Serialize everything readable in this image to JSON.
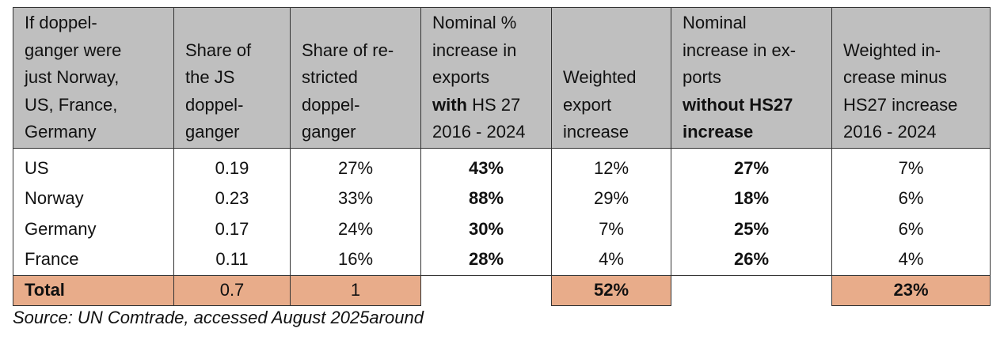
{
  "table": {
    "headers": [
      [
        "If doppel-",
        "ganger were",
        "just Norway,",
        "US, France,",
        "Germany"
      ],
      [
        "Share of",
        "the JS",
        "doppel-",
        "ganger"
      ],
      [
        "Share of re-",
        "stricted",
        "doppel-",
        "ganger"
      ],
      [
        {
          "t": "Nominal %"
        },
        {
          "t": "increase in"
        },
        {
          "t": "exports"
        },
        {
          "t": "with",
          "b": true,
          "rest": " HS 27"
        },
        {
          "t": "2016 - 2024"
        }
      ],
      [
        "Weighted",
        "export",
        "increase"
      ],
      [
        {
          "t": "Nominal"
        },
        {
          "t": "increase in ex-"
        },
        {
          "t": "ports"
        },
        {
          "t": "without HS27",
          "b": true
        },
        {
          "t": "increase",
          "b": true
        }
      ],
      [
        "Weighted in-",
        "crease minus",
        "HS27 increase",
        "2016 - 2024"
      ]
    ],
    "rows": [
      {
        "country": "US",
        "share_js": "0.19",
        "share_restricted": "27%",
        "nominal_with": "43%",
        "weighted_export": "12%",
        "nominal_without": "27%",
        "weighted_minus": "7%"
      },
      {
        "country": "Norway",
        "share_js": "0.23",
        "share_restricted": "33%",
        "nominal_with": "88%",
        "weighted_export": "29%",
        "nominal_without": "18%",
        "weighted_minus": "6%"
      },
      {
        "country": "Germany",
        "share_js": "0.17",
        "share_restricted": "24%",
        "nominal_with": "30%",
        "weighted_export": "7%",
        "nominal_without": "25%",
        "weighted_minus": "6%"
      },
      {
        "country": "France",
        "share_js": "0.11",
        "share_restricted": "16%",
        "nominal_with": "28%",
        "weighted_export": "4%",
        "nominal_without": "26%",
        "weighted_minus": "4%"
      }
    ],
    "total": {
      "label": "Total",
      "share_js": "0.7",
      "share_restricted": "1",
      "weighted_export": "52%",
      "weighted_minus": "23%"
    }
  },
  "source": "Source: UN Comtrade, accessed August 2025around",
  "colors": {
    "header_bg": "#bfbfbf",
    "total_bg": "#e8ac8a"
  }
}
